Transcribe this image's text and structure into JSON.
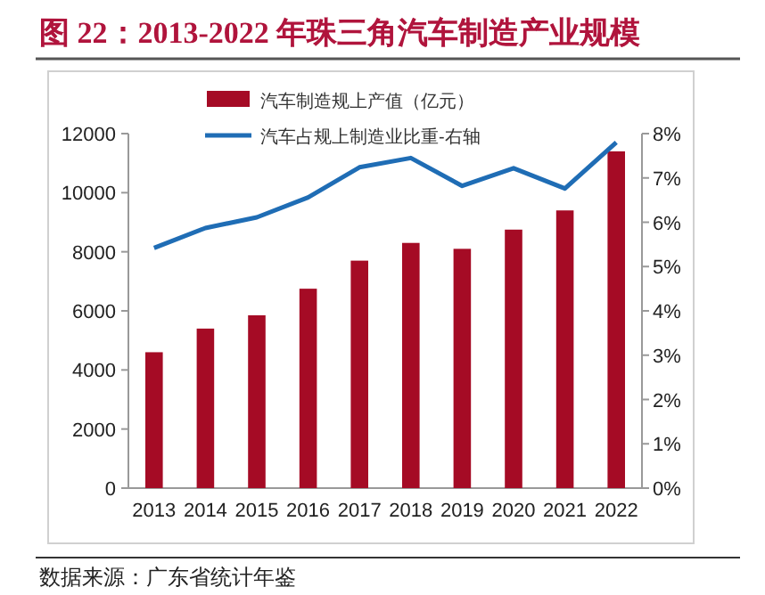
{
  "chart_data": {
    "type": "bar",
    "title": "图 22：2013-2022 年珠三角汽车制造产业规模",
    "categories": [
      "2013",
      "2014",
      "2015",
      "2016",
      "2017",
      "2018",
      "2019",
      "2020",
      "2021",
      "2022"
    ],
    "series": [
      {
        "name": "汽车制造规上产值（亿元）",
        "color": "#a50b25",
        "values": [
          4600,
          5400,
          5850,
          6750,
          7700,
          8300,
          8100,
          8750,
          9400,
          11400
        ]
      },
      {
        "name": "汽车占规上制造业比重-右轴",
        "type": "line",
        "axis": "y2",
        "color": "#1f6db5",
        "values": [
          5.42,
          5.87,
          6.11,
          6.56,
          7.24,
          7.45,
          6.82,
          7.22,
          6.76,
          7.8
        ]
      }
    ],
    "ylim": [
      0,
      12000
    ],
    "yticks": [
      0,
      2000,
      4000,
      6000,
      8000,
      10000,
      12000
    ],
    "y2lim": [
      0,
      8
    ],
    "y2ticks": [
      {
        "value": 0,
        "label": "0%"
      },
      {
        "value": 1,
        "label": "1%"
      },
      {
        "value": 2,
        "label": "2%"
      },
      {
        "value": 3,
        "label": "3%"
      },
      {
        "value": 4,
        "label": "4%"
      },
      {
        "value": 5,
        "label": "5%"
      },
      {
        "value": 6,
        "label": "6%"
      },
      {
        "value": 7,
        "label": "7%"
      },
      {
        "value": 8,
        "label": "8%"
      }
    ],
    "grid": false,
    "legend": "top",
    "marker": "none",
    "annotations": [
      "数据来源：广东省统计年鉴"
    ]
  }
}
